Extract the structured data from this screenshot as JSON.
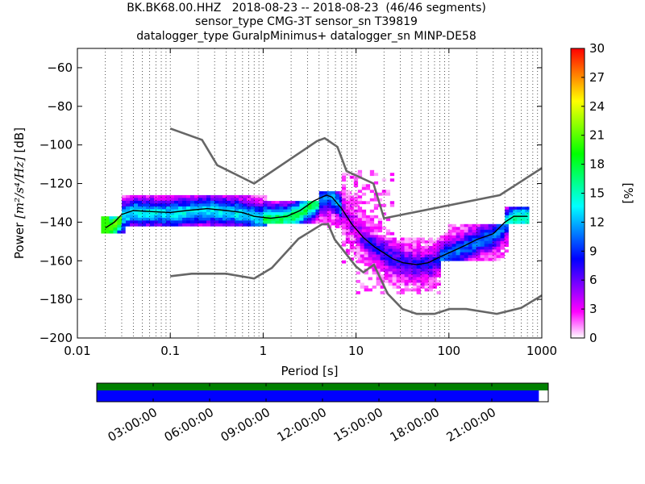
{
  "title": {
    "line1": "BK.BK68.00.HHZ   2018-08-23 -- 2018-08-23  (46/46 segments)",
    "line2": "sensor_type CMG-3T sensor_sn T39819",
    "line3": "datalogger_type GuralpMinimus+ datalogger_sn MINP-DE58"
  },
  "chart_data": [
    {
      "type": "heatmap",
      "name_role": "ppsd",
      "xlabel": "Period [s]",
      "ylabel_prefix": "Power ",
      "ylabel_units": "[m²/s⁴/Hz]",
      "ylabel_suffix": " [dB]",
      "x_scale": "log",
      "xlim": [
        0.01,
        1000
      ],
      "ylim": [
        -200,
        -50
      ],
      "x_ticks": [
        {
          "value": 0.01,
          "label": "0.01"
        },
        {
          "value": 0.1,
          "label": "0.1"
        },
        {
          "value": 1,
          "label": "1"
        },
        {
          "value": 10,
          "label": "10"
        },
        {
          "value": 100,
          "label": "100"
        },
        {
          "value": 1000,
          "label": "1000"
        }
      ],
      "y_ticks": [
        {
          "value": -60,
          "label": "−60"
        },
        {
          "value": -80,
          "label": "−80"
        },
        {
          "value": -100,
          "label": "−100"
        },
        {
          "value": -120,
          "label": "−120"
        },
        {
          "value": -140,
          "label": "−140"
        },
        {
          "value": -160,
          "label": "−160"
        },
        {
          "value": -180,
          "label": "−180"
        },
        {
          "value": -200,
          "label": "−200"
        }
      ],
      "grid": "dotted vertical lines at log-decade subdivisions",
      "noise_models": {
        "color": "#666666",
        "high": [
          [
            0.1,
            -91.5
          ],
          [
            0.22,
            -97.4
          ],
          [
            0.32,
            -110.5
          ],
          [
            0.8,
            -120
          ],
          [
            3.8,
            -98
          ],
          [
            4.6,
            -96.5
          ],
          [
            6.3,
            -101
          ],
          [
            7.9,
            -113.5
          ],
          [
            15.4,
            -120
          ],
          [
            20,
            -138
          ],
          [
            354,
            -126
          ],
          [
            1000,
            -112
          ]
        ],
        "low": [
          [
            0.1,
            -168
          ],
          [
            0.17,
            -166.7
          ],
          [
            0.4,
            -166.7
          ],
          [
            0.8,
            -169.2
          ],
          [
            1.24,
            -163.7
          ],
          [
            2.4,
            -148.6
          ],
          [
            4.3,
            -141.1
          ],
          [
            5,
            -141
          ],
          [
            5.9,
            -149
          ],
          [
            10,
            -163
          ],
          [
            12,
            -166
          ],
          [
            15.6,
            -162
          ],
          [
            21.9,
            -177
          ],
          [
            31.6,
            -185
          ],
          [
            45,
            -187.5
          ],
          [
            70,
            -187.5
          ],
          [
            101,
            -185
          ],
          [
            154,
            -185
          ],
          [
            328,
            -187.5
          ],
          [
            600,
            -184.4
          ],
          [
            1000,
            -178
          ]
        ]
      },
      "mean_line": {
        "color": "#000000",
        "points": [
          [
            0.02,
            -143
          ],
          [
            0.025,
            -140
          ],
          [
            0.03,
            -136
          ],
          [
            0.04,
            -134
          ],
          [
            0.06,
            -134.5
          ],
          [
            0.1,
            -135
          ],
          [
            0.15,
            -134
          ],
          [
            0.25,
            -133
          ],
          [
            0.4,
            -134
          ],
          [
            0.6,
            -135
          ],
          [
            0.8,
            -137
          ],
          [
            1.2,
            -138
          ],
          [
            1.8,
            -137
          ],
          [
            2.5,
            -134
          ],
          [
            3.5,
            -129
          ],
          [
            4.8,
            -126
          ],
          [
            5.5,
            -127
          ],
          [
            7,
            -133
          ],
          [
            9,
            -141
          ],
          [
            12,
            -148
          ],
          [
            16,
            -153
          ],
          [
            20,
            -156
          ],
          [
            25,
            -159
          ],
          [
            32,
            -161
          ],
          [
            45,
            -162
          ],
          [
            60,
            -161
          ],
          [
            80,
            -158
          ],
          [
            110,
            -155
          ],
          [
            150,
            -152
          ],
          [
            200,
            -149
          ],
          [
            300,
            -146
          ],
          [
            400,
            -140
          ],
          [
            500,
            -137
          ],
          [
            700,
            -137
          ]
        ]
      },
      "density": {
        "bands": [
          {
            "x_range": [
              0.018,
              0.03
            ],
            "y_range": [
              -145,
              -137
            ],
            "level": 20
          },
          {
            "x_range": [
              0.03,
              1.0
            ],
            "y_range": [
              -141,
              -126
            ],
            "level": 12
          },
          {
            "x_range": [
              1.0,
              4.0
            ],
            "y_range": [
              -140,
              -129
            ],
            "level": 16
          },
          {
            "x_range": [
              4.0,
              10
            ],
            "y_range": [
              -142,
              -124
            ],
            "level": 10
          },
          {
            "x_range": [
              7,
              25
            ],
            "y_range": [
              -160,
              -113
            ],
            "level": 3
          },
          {
            "x_range": [
              10,
              80
            ],
            "y_range": [
              -176,
              -148
            ],
            "level": 6
          },
          {
            "x_range": [
              80,
              400
            ],
            "y_range": [
              -160,
              -141
            ],
            "level": 9
          },
          {
            "x_range": [
              400,
              700
            ],
            "y_range": [
              -140,
              -132
            ],
            "level": 14
          }
        ]
      },
      "colorbar": {
        "label": "[%]",
        "min": 0,
        "max": 30,
        "ticks": [
          {
            "value": 0,
            "label": "0"
          },
          {
            "value": 3,
            "label": "3"
          },
          {
            "value": 6,
            "label": "6"
          },
          {
            "value": 9,
            "label": "9"
          },
          {
            "value": 12,
            "label": "12"
          },
          {
            "value": 15,
            "label": "15"
          },
          {
            "value": 18,
            "label": "18"
          },
          {
            "value": 21,
            "label": "21"
          },
          {
            "value": 24,
            "label": "24"
          },
          {
            "value": 27,
            "label": "27"
          },
          {
            "value": 30,
            "label": "30"
          }
        ],
        "colormap": [
          "#ffffff",
          "#ff00ff",
          "#8000ff",
          "#0000ff",
          "#0080ff",
          "#00ffff",
          "#00ff80",
          "#00ff00",
          "#80ff00",
          "#ffff00",
          "#ff8000",
          "#ff0000"
        ]
      }
    },
    {
      "type": "timeline",
      "name_role": "data-coverage",
      "x_start_hours": 0,
      "x_end_hours": 24,
      "tick_labels": [
        "03:00:00",
        "06:00:00",
        "09:00:00",
        "12:00:00",
        "15:00:00",
        "18:00:00",
        "21:00:00"
      ],
      "tick_hours": [
        3,
        6,
        9,
        12,
        15,
        18,
        21
      ],
      "bars": [
        {
          "color": "#008000",
          "start_hours": 0,
          "end_hours": 24
        },
        {
          "color": "#0000ff",
          "start_hours": 0,
          "end_hours": 23.5
        }
      ]
    }
  ]
}
